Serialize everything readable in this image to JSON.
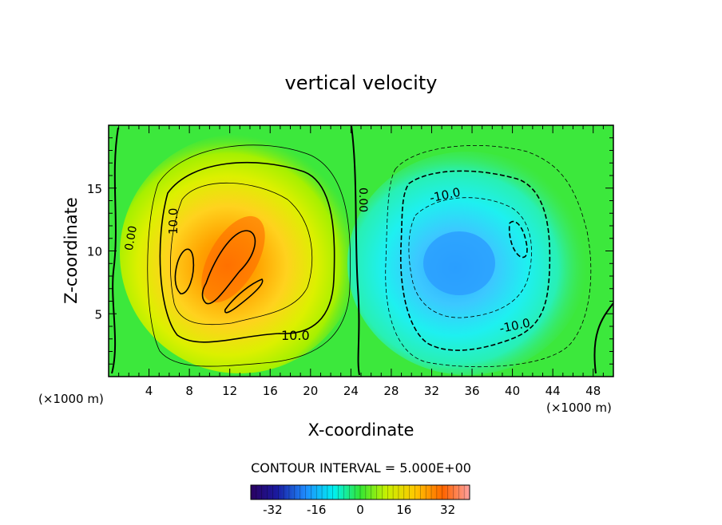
{
  "chart_data": {
    "type": "contour",
    "title": "vertical velocity",
    "xlabel": "X-coordinate",
    "ylabel": "Z-coordinate",
    "x_unit_left": "(×1000 m)",
    "x_unit_right": "(×1000 m)",
    "xlim": [
      0,
      50
    ],
    "ylim": [
      0,
      20
    ],
    "x_ticks": [
      4,
      8,
      12,
      16,
      20,
      24,
      28,
      32,
      36,
      40,
      44,
      48
    ],
    "y_ticks": [
      5,
      10,
      15
    ],
    "contour_interval_text": "CONTOUR INTERVAL = 5.000E+00",
    "contour_interval": 5.0,
    "contour_labels": [
      {
        "text": "0.00",
        "x": 1.2,
        "z": 11.5,
        "rotate": -80
      },
      {
        "text": "10.0",
        "x": 5.2,
        "z": 12.2,
        "rotate": -90
      },
      {
        "text": "0.00",
        "x": 25.0,
        "z": 14.2,
        "rotate": 90
      },
      {
        "text": "-10.0",
        "x": 33.5,
        "z": 14.3,
        "rotate": -12
      },
      {
        "text": "10.0",
        "x": 18.0,
        "z": 3.2,
        "rotate": 0
      },
      {
        "text": "-10.0",
        "x": 40.5,
        "z": 4.5,
        "rotate": -12
      }
    ],
    "colorbar": {
      "min": -40,
      "max": 40,
      "tick_labels": [
        "-32",
        "-16",
        "0",
        "16",
        "32"
      ],
      "tick_values": [
        -32,
        -16,
        0,
        16,
        32
      ]
    },
    "updraft_max_approx": 28,
    "downdraft_min_approx": -22
  }
}
